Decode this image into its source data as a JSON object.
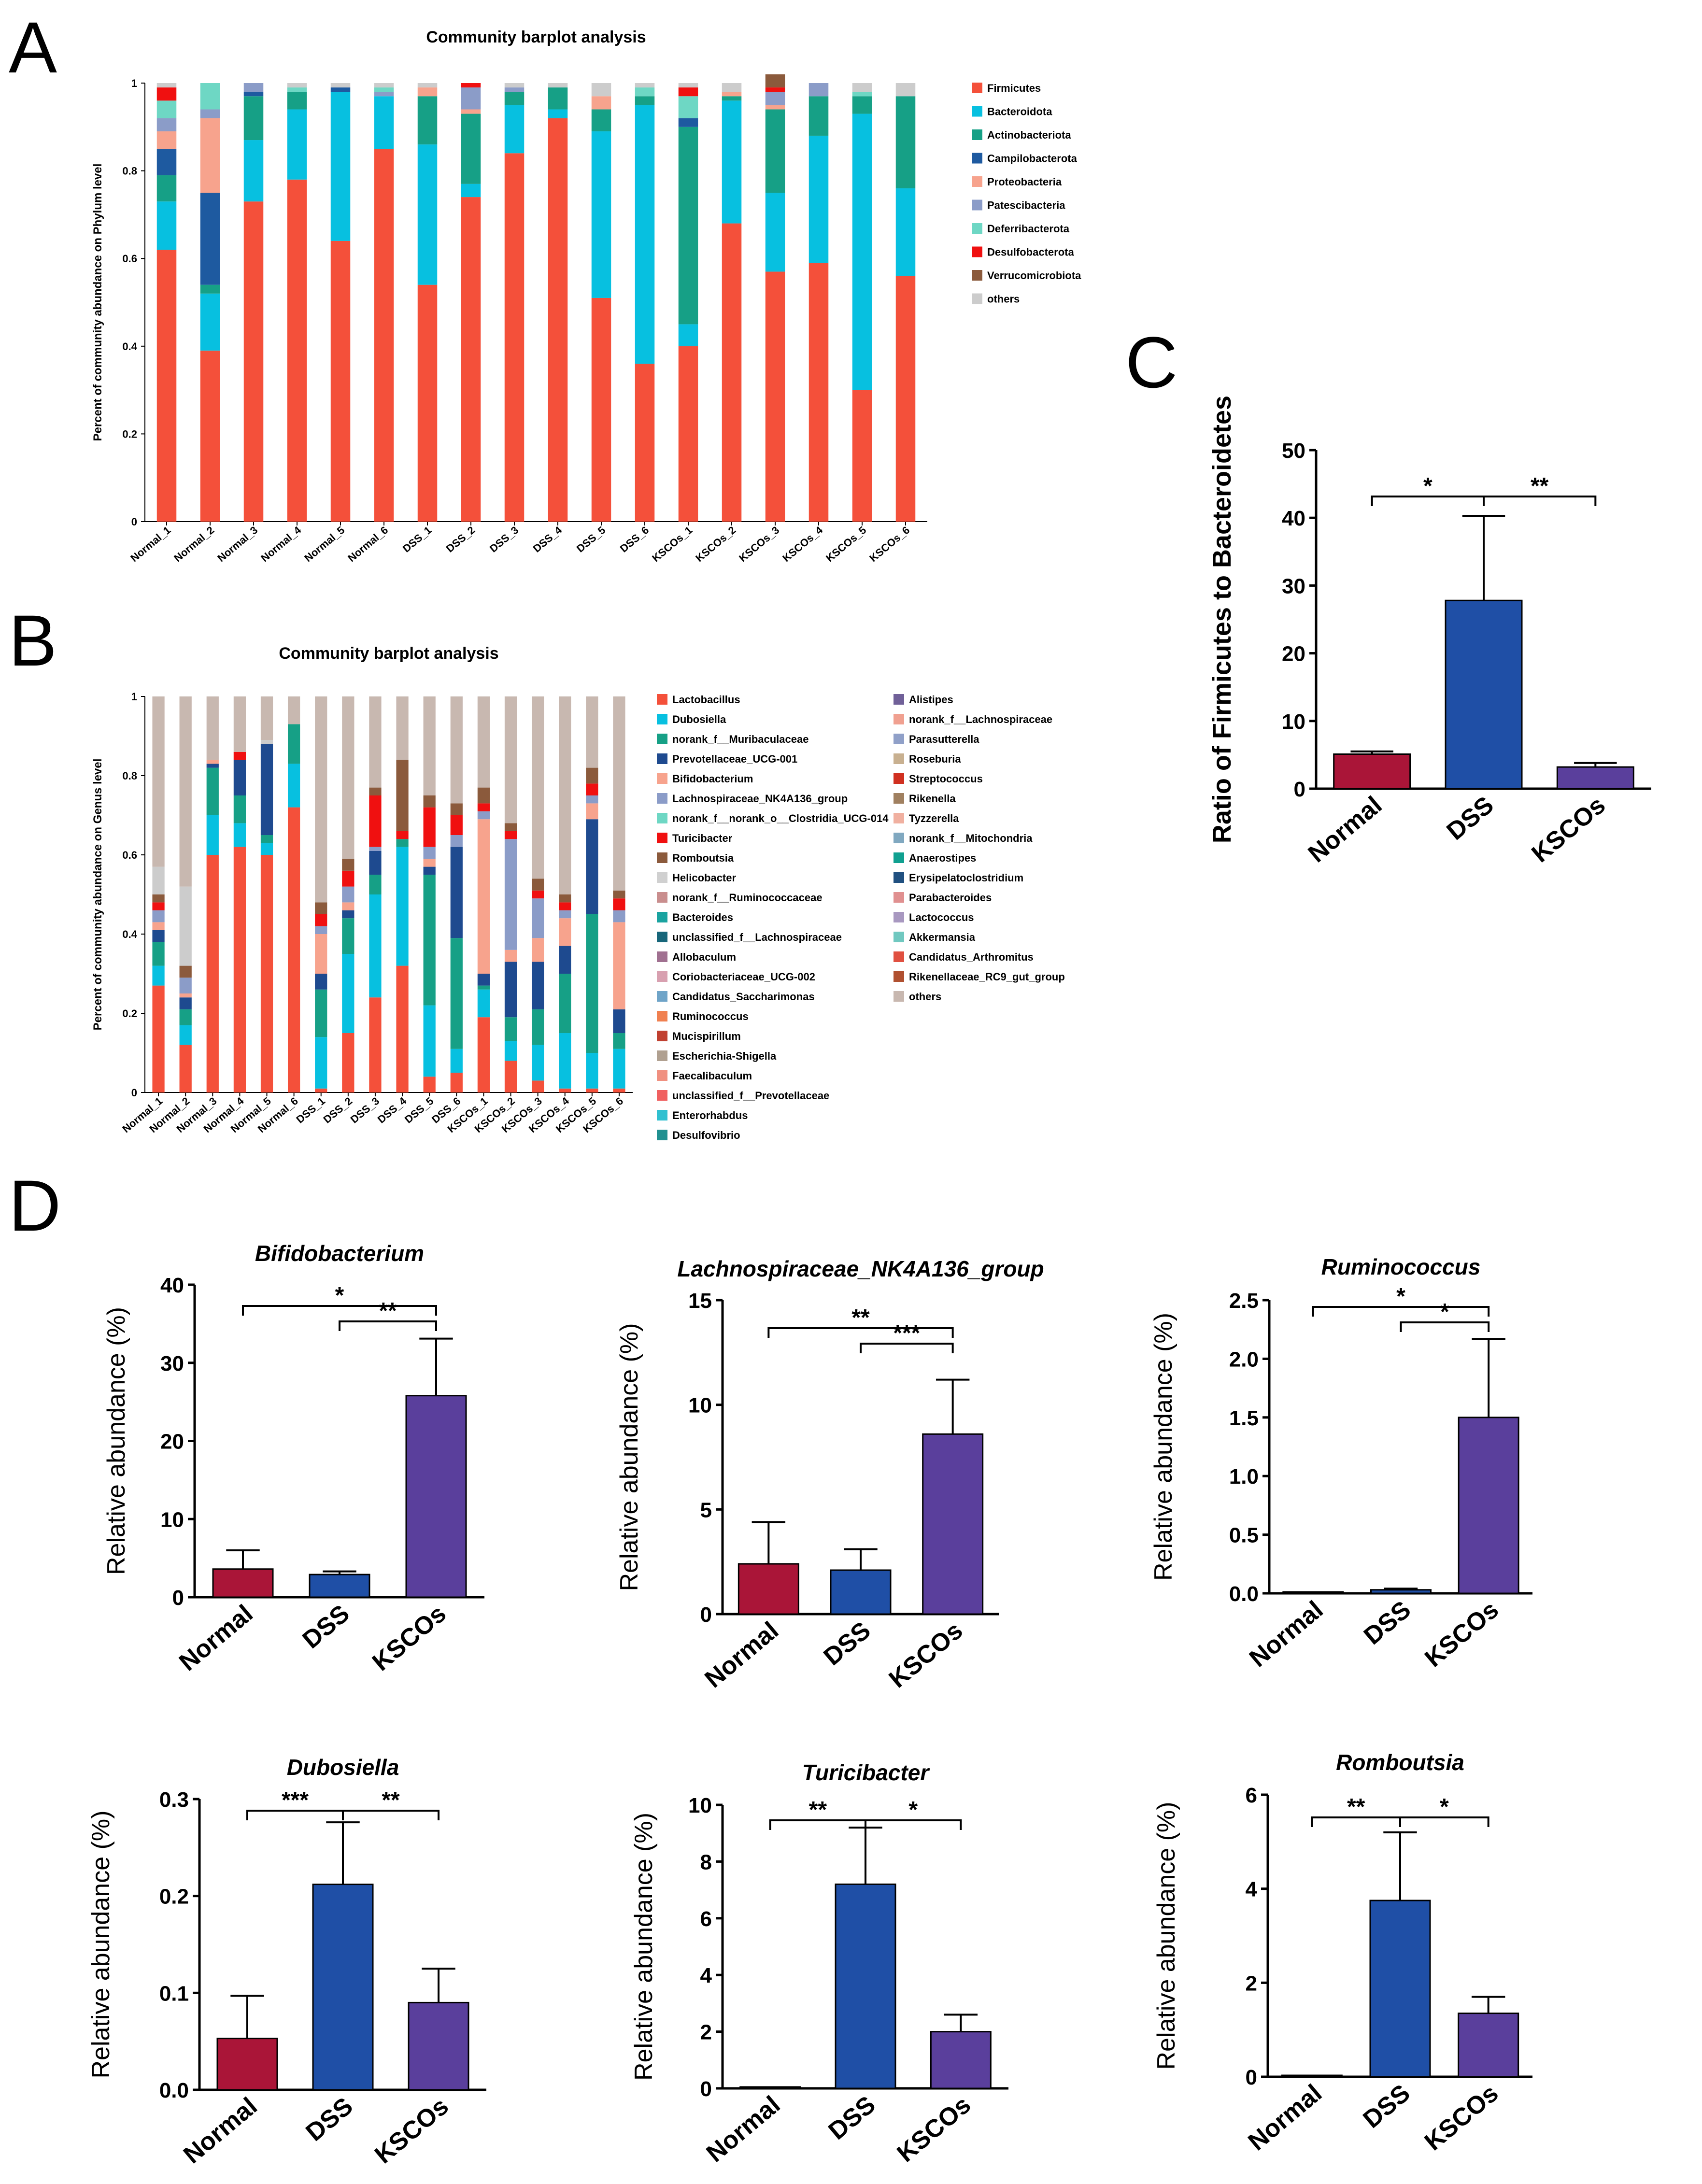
{
  "panels": {
    "A": "A",
    "B": "B",
    "C": "C",
    "D": "D"
  },
  "chart_data": [
    {
      "id": "A",
      "type": "stacked-bar",
      "title": "Community barplot analysis",
      "ylabel": "Percent of community abundance on Phylum level",
      "xlabel": "",
      "ylim": [
        0,
        1
      ],
      "yticks": [
        "0",
        "0.2",
        "0.4",
        "0.6",
        "0.8",
        "1"
      ],
      "categories": [
        "Normal_1",
        "Normal_2",
        "Normal_3",
        "Normal_4",
        "Normal_5",
        "Normal_6",
        "DSS_1",
        "DSS_2",
        "DSS_3",
        "DSS_4",
        "DSS_5",
        "DSS_6",
        "KSCOs_1",
        "KSCOs_2",
        "KSCOs_3",
        "KSCOs_4",
        "KSCOs_5",
        "KSCOs_6"
      ],
      "series": [
        {
          "name": "Firmicutes",
          "color": "#f4503a",
          "values": [
            0.62,
            0.39,
            0.73,
            0.78,
            0.64,
            0.85,
            0.54,
            0.74,
            0.84,
            0.92,
            0.51,
            0.36,
            0.4,
            0.68,
            0.57,
            0.59,
            0.3,
            0.56
          ]
        },
        {
          "name": "Bacteroidota",
          "color": "#07c0e0",
          "values": [
            0.11,
            0.13,
            0.14,
            0.16,
            0.34,
            0.12,
            0.32,
            0.03,
            0.11,
            0.02,
            0.38,
            0.59,
            0.05,
            0.28,
            0.18,
            0.29,
            0.63,
            0.2
          ]
        },
        {
          "name": "Actinobacteriota",
          "color": "#16a086",
          "values": [
            0.06,
            0.02,
            0.1,
            0.04,
            0.0,
            0.0,
            0.11,
            0.16,
            0.03,
            0.05,
            0.05,
            0.02,
            0.45,
            0.01,
            0.19,
            0.09,
            0.04,
            0.21
          ]
        },
        {
          "name": "Campilobacterota",
          "color": "#1e5aa0",
          "values": [
            0.06,
            0.21,
            0.01,
            0.0,
            0.01,
            0.0,
            0.0,
            0.0,
            0.0,
            0.0,
            0.0,
            0.0,
            0.02,
            0.0,
            0.0,
            0.0,
            0.0,
            0.0
          ]
        },
        {
          "name": "Proteobacteria",
          "color": "#f7a38d",
          "values": [
            0.04,
            0.17,
            0.0,
            0.0,
            0.0,
            0.0,
            0.02,
            0.01,
            0.0,
            0.0,
            0.03,
            0.0,
            0.0,
            0.01,
            0.01,
            0.0,
            0.0,
            0.0
          ]
        },
        {
          "name": "Patescibacteria",
          "color": "#8b9cc8",
          "values": [
            0.03,
            0.02,
            0.02,
            0.0,
            0.0,
            0.01,
            0.0,
            0.05,
            0.01,
            0.0,
            0.0,
            0.0,
            0.0,
            0.0,
            0.03,
            0.03,
            0.0,
            0.0
          ]
        },
        {
          "name": "Deferribacterota",
          "color": "#6ed7c4",
          "values": [
            0.04,
            0.06,
            0.0,
            0.01,
            0.0,
            0.01,
            0.0,
            0.0,
            0.0,
            0.0,
            0.0,
            0.02,
            0.05,
            0.0,
            0.0,
            0.0,
            0.01,
            0.0
          ]
        },
        {
          "name": "Desulfobacterota",
          "color": "#f01010",
          "values": [
            0.03,
            0.0,
            0.0,
            0.0,
            0.0,
            0.0,
            0.0,
            0.01,
            0.0,
            0.0,
            0.0,
            0.0,
            0.02,
            0.0,
            0.01,
            0.0,
            0.0,
            0.0
          ]
        },
        {
          "name": "Verrucomicrobiota",
          "color": "#8b5a3c",
          "values": [
            0.0,
            0.0,
            0.0,
            0.0,
            0.0,
            0.0,
            0.0,
            0.0,
            0.0,
            0.0,
            0.0,
            0.0,
            0.0,
            0.0,
            0.03,
            0.0,
            0.0,
            0.0
          ]
        },
        {
          "name": "others",
          "color": "#cccccc",
          "values": [
            0.01,
            0.0,
            0.0,
            0.01,
            0.01,
            0.01,
            0.01,
            0.0,
            0.01,
            0.01,
            0.03,
            0.01,
            0.01,
            0.02,
            0.0,
            0.0,
            0.02,
            0.03
          ]
        }
      ]
    },
    {
      "id": "B",
      "type": "stacked-bar",
      "title": "Community barplot analysis",
      "ylabel": "Percent of community abundance on Genus level",
      "xlabel": "",
      "ylim": [
        0,
        1
      ],
      "yticks": [
        "0",
        "0.2",
        "0.4",
        "0.6",
        "0.8",
        "1"
      ],
      "categories": [
        "Normal_1",
        "Normal_2",
        "Normal_3",
        "Normal_4",
        "Normal_5",
        "Normal_6",
        "DSS_1",
        "DSS_2",
        "DSS_3",
        "DSS_4",
        "DSS_5",
        "DSS_6",
        "KSCOs_1",
        "KSCOs_2",
        "KSCOs_3",
        "KSCOs_4",
        "KSCOs_5",
        "KSCOs_6"
      ],
      "series": [
        {
          "name": "Lactobacillus",
          "color": "#f4503a",
          "values": [
            0.27,
            0.12,
            0.6,
            0.62,
            0.6,
            0.72,
            0.01,
            0.15,
            0.24,
            0.32,
            0.04,
            0.05,
            0.19,
            0.08,
            0.03,
            0.01,
            0.01,
            0.01
          ]
        },
        {
          "name": "Dubosiella",
          "color": "#07c0e0",
          "values": [
            0.05,
            0.05,
            0.1,
            0.06,
            0.03,
            0.11,
            0.13,
            0.2,
            0.26,
            0.3,
            0.18,
            0.06,
            0.07,
            0.05,
            0.09,
            0.14,
            0.09,
            0.1
          ]
        },
        {
          "name": "norank_f__Muribaculaceae",
          "color": "#16a086",
          "values": [
            0.06,
            0.04,
            0.12,
            0.07,
            0.02,
            0.1,
            0.12,
            0.09,
            0.05,
            0.02,
            0.33,
            0.28,
            0.01,
            0.06,
            0.09,
            0.15,
            0.35,
            0.04
          ]
        },
        {
          "name": "Prevotellaceae_UCG-001",
          "color": "#1e4a8f",
          "values": [
            0.03,
            0.03,
            0.01,
            0.09,
            0.23,
            0.0,
            0.04,
            0.02,
            0.06,
            0.0,
            0.02,
            0.23,
            0.03,
            0.14,
            0.12,
            0.07,
            0.24,
            0.06
          ]
        },
        {
          "name": "Bifidobacterium",
          "color": "#f7a38d",
          "values": [
            0.02,
            0.01,
            0.01,
            0.0,
            0.0,
            0.0,
            0.1,
            0.02,
            0.0,
            0.0,
            0.02,
            0.0,
            0.39,
            0.03,
            0.06,
            0.07,
            0.04,
            0.22
          ]
        },
        {
          "name": "Lachnospiraceae_NK4A136_group",
          "color": "#8b9cc8",
          "values": [
            0.03,
            0.04,
            0.0,
            0.0,
            0.0,
            0.0,
            0.02,
            0.04,
            0.01,
            0.0,
            0.03,
            0.03,
            0.02,
            0.28,
            0.1,
            0.02,
            0.02,
            0.03
          ]
        },
        {
          "name": "Turicibacter",
          "color": "#f01010",
          "values": [
            0.02,
            0.0,
            0.0,
            0.02,
            0.0,
            0.0,
            0.03,
            0.04,
            0.13,
            0.02,
            0.1,
            0.05,
            0.02,
            0.02,
            0.02,
            0.02,
            0.03,
            0.03
          ]
        },
        {
          "name": "Romboutsia",
          "color": "#8b5a3c",
          "values": [
            0.02,
            0.03,
            0.0,
            0.0,
            0.0,
            0.0,
            0.03,
            0.03,
            0.02,
            0.18,
            0.03,
            0.03,
            0.04,
            0.02,
            0.03,
            0.02,
            0.04,
            0.02
          ]
        },
        {
          "name": "Helicobacter",
          "color": "#cccccc",
          "values": [
            0.07,
            0.2,
            0.0,
            0.0,
            0.01,
            0.0,
            0.0,
            0.0,
            0.0,
            0.0,
            0.0,
            0.0,
            0.0,
            0.0,
            0.0,
            0.0,
            0.0,
            0.0
          ]
        },
        {
          "name": "others",
          "color": "#c8b8b0",
          "values": [
            0.43,
            0.48,
            0.16,
            0.14,
            0.11,
            0.07,
            0.52,
            0.41,
            0.23,
            0.16,
            0.25,
            0.27,
            0.23,
            0.32,
            0.46,
            0.5,
            0.18,
            0.49
          ]
        }
      ],
      "legend": [
        {
          "name": "Lactobacillus",
          "color": "#f4503a"
        },
        {
          "name": "Dubosiella",
          "color": "#07c0e0"
        },
        {
          "name": "norank_f__Muribaculaceae",
          "color": "#16a086"
        },
        {
          "name": "Prevotellaceae_UCG-001",
          "color": "#1e4a8f"
        },
        {
          "name": "Bifidobacterium",
          "color": "#f7a38d"
        },
        {
          "name": "Lachnospiraceae_NK4A136_group",
          "color": "#8b9cc8"
        },
        {
          "name": "norank_f__norank_o__Clostridia_UCG-014",
          "color": "#6ed7c4"
        },
        {
          "name": "Turicibacter",
          "color": "#f01010"
        },
        {
          "name": "Romboutsia",
          "color": "#8b5a3c"
        },
        {
          "name": "Helicobacter",
          "color": "#d0d0d0"
        },
        {
          "name": "norank_f__Ruminococcaceae",
          "color": "#c98e8e"
        },
        {
          "name": "Bacteroides",
          "color": "#1aa3a0"
        },
        {
          "name": "unclassified_f__Lachnospiraceae",
          "color": "#17667a"
        },
        {
          "name": "Allobaculum",
          "color": "#a07090"
        },
        {
          "name": "Coriobacteriaceae_UCG-002",
          "color": "#d8a0b0"
        },
        {
          "name": "Candidatus_Saccharimonas",
          "color": "#6fa4c8"
        },
        {
          "name": "Ruminococcus",
          "color": "#f08050"
        },
        {
          "name": "Mucispirillum",
          "color": "#c04030"
        },
        {
          "name": "Escherichia-Shigella",
          "color": "#b0a090"
        },
        {
          "name": "Faecalibaculum",
          "color": "#f09080"
        },
        {
          "name": "unclassified_f__Prevotellaceae",
          "color": "#f06060"
        },
        {
          "name": "Enterorhabdus",
          "color": "#30c0d0"
        },
        {
          "name": "Desulfovibrio",
          "color": "#209090"
        },
        {
          "name": "Alistipes",
          "color": "#706098"
        },
        {
          "name": "norank_f__Lachnospiraceae",
          "color": "#f0a090"
        },
        {
          "name": "Parasutterella",
          "color": "#90a0c8"
        },
        {
          "name": "Roseburia",
          "color": "#c8b090"
        },
        {
          "name": "Streptococcus",
          "color": "#d03020"
        },
        {
          "name": "Rikenella",
          "color": "#a08060"
        },
        {
          "name": "Tyzzerella",
          "color": "#f0b0a0"
        },
        {
          "name": "norank_f__Mitochondria",
          "color": "#80a8c0"
        },
        {
          "name": "Anaerostipes",
          "color": "#10a090"
        },
        {
          "name": "Erysipelatoclostridium",
          "color": "#205080"
        },
        {
          "name": "Parabacteroides",
          "color": "#e09090"
        },
        {
          "name": "Lactococcus",
          "color": "#a898c0"
        },
        {
          "name": "Akkermansia",
          "color": "#70c8c0"
        },
        {
          "name": "Candidatus_Arthromitus",
          "color": "#e05040"
        },
        {
          "name": "Rikenellaceae_RC9_gut_group",
          "color": "#b05030"
        },
        {
          "name": "others",
          "color": "#c8b8b0"
        }
      ]
    },
    {
      "id": "C",
      "type": "bar",
      "title": "",
      "ylabel": "Ratio of Firmicutes to Bacteroidetes",
      "categories": [
        "Normal",
        "DSS",
        "KSCOs"
      ],
      "values": [
        5.1,
        27.8,
        3.2
      ],
      "errors": [
        0.4,
        12.5,
        0.6
      ],
      "colors": [
        "#aa1538",
        "#1f4fa6",
        "#5a3f9c"
      ],
      "ylim": [
        0,
        50
      ],
      "yticks": [
        "0",
        "10",
        "20",
        "30",
        "40",
        "50"
      ],
      "sig": [
        {
          "from": 0,
          "to": 1,
          "label": "*",
          "level": 0
        },
        {
          "from": 1,
          "to": 2,
          "label": "**",
          "level": 0
        }
      ]
    },
    {
      "id": "D1",
      "type": "bar",
      "title": "Bifidobacterium",
      "ylabel": "Relative abundance (%)",
      "categories": [
        "Normal",
        "DSS",
        "KSCOs"
      ],
      "values": [
        3.6,
        2.9,
        25.8
      ],
      "errors": [
        2.4,
        0.4,
        7.3
      ],
      "colors": [
        "#aa1538",
        "#1f4fa6",
        "#5a3f9c"
      ],
      "ylim": [
        0,
        40
      ],
      "yticks": [
        "0",
        "10",
        "20",
        "30",
        "40"
      ],
      "sig": [
        {
          "from": 0,
          "to": 2,
          "label": "*",
          "level": 1
        },
        {
          "from": 1,
          "to": 2,
          "label": "**",
          "level": 0
        }
      ]
    },
    {
      "id": "D2",
      "type": "bar",
      "title": "Lachnospiraceae_NK4A136_group",
      "ylabel": "Relative abundance (%)",
      "categories": [
        "Normal",
        "DSS",
        "KSCOs"
      ],
      "values": [
        2.4,
        2.1,
        8.6
      ],
      "errors": [
        2.0,
        1.0,
        2.6
      ],
      "colors": [
        "#aa1538",
        "#1f4fa6",
        "#5a3f9c"
      ],
      "ylim": [
        0,
        15
      ],
      "yticks": [
        "0",
        "5",
        "10",
        "15"
      ],
      "sig": [
        {
          "from": 0,
          "to": 2,
          "label": "**",
          "level": 1
        },
        {
          "from": 1,
          "to": 2,
          "label": "***",
          "level": 0
        }
      ]
    },
    {
      "id": "D3",
      "type": "bar",
      "title": "Ruminococcus",
      "ylabel": "Relative abundance (%)",
      "categories": [
        "Normal",
        "DSS",
        "KSCOs"
      ],
      "values": [
        0.01,
        0.03,
        1.5
      ],
      "errors": [
        0.0,
        0.01,
        0.67
      ],
      "colors": [
        "#aa1538",
        "#1f4fa6",
        "#5a3f9c"
      ],
      "ylim": [
        0,
        2.5
      ],
      "yticks": [
        "0.0",
        "0.5",
        "1.0",
        "1.5",
        "2.0",
        "2.5"
      ],
      "sig": [
        {
          "from": 0,
          "to": 2,
          "label": "*",
          "level": 1
        },
        {
          "from": 1,
          "to": 2,
          "label": "*",
          "level": 0
        }
      ]
    },
    {
      "id": "D4",
      "type": "bar",
      "title": "Dubosiella",
      "ylabel": "Relative abundance (%)",
      "categories": [
        "Normal",
        "DSS",
        "KSCOs"
      ],
      "values": [
        0.053,
        0.212,
        0.09
      ],
      "errors": [
        0.044,
        0.064,
        0.035
      ],
      "colors": [
        "#aa1538",
        "#1f4fa6",
        "#5a3f9c"
      ],
      "ylim": [
        0,
        0.3
      ],
      "yticks": [
        "0.0",
        "0.1",
        "0.2",
        "0.3"
      ],
      "sig": [
        {
          "from": 0,
          "to": 1,
          "label": "***",
          "level": 0
        },
        {
          "from": 1,
          "to": 2,
          "label": "**",
          "level": 0
        }
      ]
    },
    {
      "id": "D5",
      "type": "bar",
      "title": "Turicibacter",
      "ylabel": "Relative abundance (%)",
      "categories": [
        "Normal",
        "DSS",
        "KSCOs"
      ],
      "values": [
        0.0,
        7.2,
        2.0
      ],
      "errors": [
        0.0,
        2.0,
        0.6
      ],
      "colors": [
        "#aa1538",
        "#1f4fa6",
        "#5a3f9c"
      ],
      "ylim": [
        0,
        10
      ],
      "yticks": [
        "0",
        "2",
        "4",
        "6",
        "8",
        "10"
      ],
      "sig": [
        {
          "from": 0,
          "to": 1,
          "label": "**",
          "level": 0
        },
        {
          "from": 1,
          "to": 2,
          "label": "*",
          "level": 0
        }
      ]
    },
    {
      "id": "D6",
      "type": "bar",
      "title": "Romboutsia",
      "ylabel": "Relative abundance (%)",
      "categories": [
        "Normal",
        "DSS",
        "KSCOs"
      ],
      "values": [
        0.0,
        3.75,
        1.35
      ],
      "errors": [
        0.0,
        1.45,
        0.35
      ],
      "colors": [
        "#aa1538",
        "#1f4fa6",
        "#5a3f9c"
      ],
      "ylim": [
        0,
        6
      ],
      "yticks": [
        "0",
        "2",
        "4",
        "6"
      ],
      "sig": [
        {
          "from": 0,
          "to": 1,
          "label": "**",
          "level": 0
        },
        {
          "from": 1,
          "to": 2,
          "label": "*",
          "level": 0
        }
      ]
    }
  ]
}
